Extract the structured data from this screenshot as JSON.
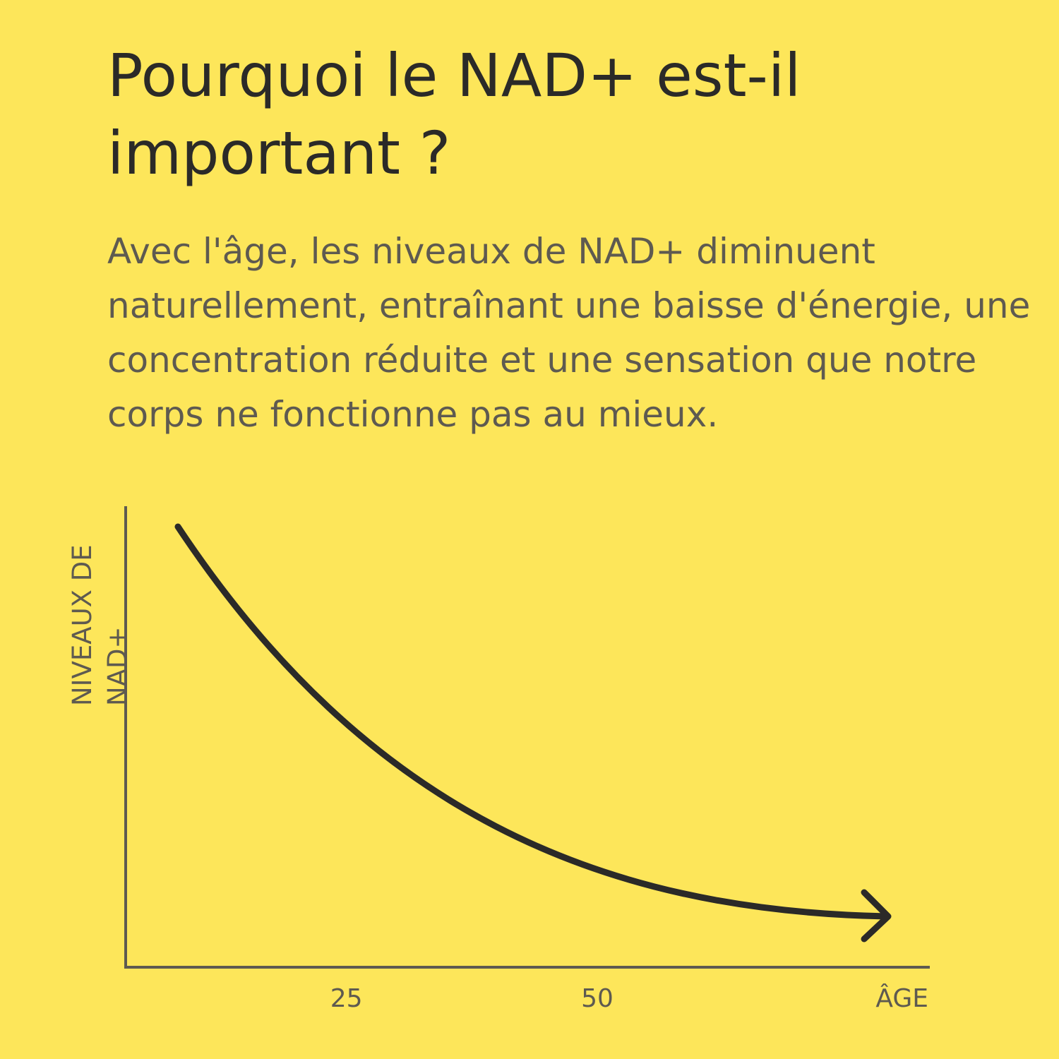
{
  "chart_data": {
    "type": "line",
    "title": "Pourquoi le NAD+ est-il important ?",
    "subtitle": "Avec l'âge, les niveaux de NAD+ diminuent naturellement, entraînant une baisse d'énergie, une concentration réduite et une sensation que notre corps ne fonctionne pas au mieux.",
    "ylabel": "NIVEAUX DE NAD+",
    "xlabel": "ÂGE",
    "xlim": [
      3,
      83
    ],
    "xticks": [
      25,
      50
    ]
  }
}
